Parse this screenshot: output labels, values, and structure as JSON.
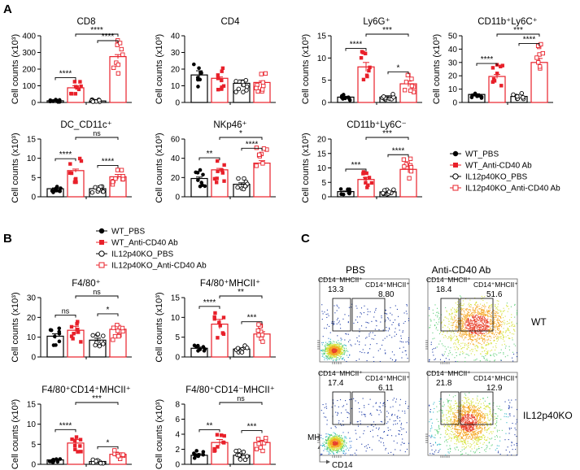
{
  "colors": {
    "wt": "#000000",
    "anti": "#e8202a",
    "ko_pbs": "#000000",
    "ko_anti": "#e8202a",
    "sig": "#000000"
  },
  "panels": [
    {
      "label": "A"
    },
    {
      "label": "B"
    },
    {
      "label": "C"
    }
  ],
  "legend_a": {
    "items": [
      "WT_PBS",
      "WT_Anti-CD40 Ab",
      "IL12p40KO_PBS",
      "IL12p40KO_Anti-CD40 Ab"
    ]
  },
  "legend_b": {
    "items": [
      "WT_PBS",
      "WT_Anti-CD40 Ab",
      "IL12p40KO_PBS",
      "IL12p40KO_Anti-CD40 Ab"
    ]
  },
  "chart_data": [
    {
      "id": "cd8",
      "type": "bar",
      "title": "CD8",
      "ylabel": "Cell counts (x10³)",
      "yticks": [
        "0",
        "100",
        "200",
        "300",
        "400"
      ],
      "ylim": [
        0,
        400
      ],
      "categories": [
        "WT_PBS",
        "WT_Anti-CD40 Ab",
        "IL12p40KO_PBS",
        "IL12p40KO_Anti-CD40 Ab"
      ],
      "values": [
        10,
        88,
        9,
        275
      ],
      "errors": [
        2,
        12,
        2,
        12
      ],
      "sig": [
        {
          "a": 0,
          "b": 1,
          "label": "****"
        },
        {
          "a": 2,
          "b": 3,
          "label": "****"
        },
        {
          "a": 1,
          "b": 3,
          "label": "****"
        }
      ]
    },
    {
      "id": "cd4",
      "type": "bar",
      "title": "CD4",
      "ylabel": "Cell counts (x10³)",
      "yticks": [
        "0",
        "10",
        "20",
        "30",
        "40"
      ],
      "ylim": [
        0,
        40
      ],
      "categories": [
        "WT_PBS",
        "WT_Anti-CD40 Ab",
        "IL12p40KO_PBS",
        "IL12p40KO_Anti-CD40 Ab"
      ],
      "values": [
        16.5,
        14.5,
        11.5,
        12
      ],
      "errors": [
        2.5,
        0.8,
        2,
        0.8
      ],
      "sig": []
    },
    {
      "id": "ly6g",
      "type": "bar",
      "title": "Ly6G⁺",
      "ylabel": "Cell counts (x10³)",
      "yticks": [
        "0",
        "5",
        "10",
        "15"
      ],
      "ylim": [
        0,
        15
      ],
      "categories": [
        "WT_PBS",
        "WT_Anti-CD40 Ab",
        "IL12p40KO_PBS",
        "IL12p40KO_Anti-CD40 Ab"
      ],
      "values": [
        1.2,
        8,
        1.2,
        4.2
      ],
      "errors": [
        0.2,
        1,
        0.3,
        0.6
      ],
      "sig": [
        {
          "a": 0,
          "b": 1,
          "label": "****"
        },
        {
          "a": 2,
          "b": 3,
          "label": "*"
        },
        {
          "a": 1,
          "b": 3,
          "label": "***"
        }
      ]
    },
    {
      "id": "cd11bly6chi",
      "type": "bar",
      "title": "CD11b⁺Ly6C⁺",
      "ylabel": "Cell counts (x10³)",
      "yticks": [
        "0",
        "10",
        "20",
        "30",
        "40",
        "50"
      ],
      "ylim": [
        0,
        50
      ],
      "categories": [
        "WT_PBS",
        "WT_Anti-CD40 Ab",
        "IL12p40KO_PBS",
        "IL12p40KO_Anti-CD40 Ab"
      ],
      "values": [
        6,
        19.5,
        4.5,
        30
      ],
      "errors": [
        0.5,
        1.5,
        0.5,
        3
      ],
      "sig": [
        {
          "a": 0,
          "b": 1,
          "label": "****"
        },
        {
          "a": 2,
          "b": 3,
          "label": "****"
        },
        {
          "a": 1,
          "b": 3,
          "label": "***"
        }
      ]
    },
    {
      "id": "dc",
      "type": "bar",
      "title": "DC_CD11c⁺",
      "ylabel": "Cell counts (x10³)",
      "yticks": [
        "0",
        "5",
        "10",
        "15"
      ],
      "ylim": [
        0,
        15
      ],
      "categories": [
        "WT_PBS",
        "WT_Anti-CD40 Ab",
        "IL12p40KO_PBS",
        "IL12p40KO_Anti-CD40 Ab"
      ],
      "values": [
        2.1,
        6.8,
        2.1,
        5.2
      ],
      "errors": [
        0.2,
        0.4,
        0.2,
        0.6
      ],
      "sig": [
        {
          "a": 0,
          "b": 1,
          "label": "****"
        },
        {
          "a": 2,
          "b": 3,
          "label": "****"
        },
        {
          "a": 1,
          "b": 3,
          "label": "ns"
        }
      ]
    },
    {
      "id": "nkp46",
      "type": "bar",
      "title": "NKp46⁺",
      "ylabel": "Cell counts (x10³)",
      "yticks": [
        "0",
        "20",
        "40",
        "60"
      ],
      "ylim": [
        0,
        60
      ],
      "categories": [
        "WT_PBS",
        "WT_Anti-CD40 Ab",
        "IL12p40KO_PBS",
        "IL12p40KO_Anti-CD40 Ab"
      ],
      "values": [
        19,
        28,
        13,
        35
      ],
      "errors": [
        1.5,
        1.5,
        1.5,
        2.5
      ],
      "sig": [
        {
          "a": 0,
          "b": 1,
          "label": "**"
        },
        {
          "a": 2,
          "b": 3,
          "label": "****"
        },
        {
          "a": 1,
          "b": 3,
          "label": "*"
        }
      ]
    },
    {
      "id": "cd11bly6clo",
      "type": "bar",
      "title": "CD11b⁺Ly6C⁻",
      "ylabel": "Cell counts (x10³)",
      "yticks": [
        "0",
        "5",
        "10",
        "15",
        "20"
      ],
      "ylim": [
        0,
        20
      ],
      "categories": [
        "WT_PBS",
        "WT_Anti-CD40 Ab",
        "IL12p40KO_PBS",
        "IL12p40KO_Anti-CD40 Ab"
      ],
      "values": [
        1.8,
        6,
        1.7,
        9.5
      ],
      "errors": [
        0.2,
        0.7,
        0.2,
        1.2
      ],
      "sig": [
        {
          "a": 0,
          "b": 1,
          "label": "***"
        },
        {
          "a": 2,
          "b": 3,
          "label": "****"
        },
        {
          "a": 1,
          "b": 3,
          "label": "***"
        }
      ]
    },
    {
      "id": "f480",
      "type": "bar",
      "title": "F4/80⁺",
      "ylabel": "Cell counts (x10³)",
      "yticks": [
        "0",
        "10",
        "20",
        "30"
      ],
      "ylim": [
        0,
        30
      ],
      "categories": [
        "WT_PBS",
        "WT_Anti-CD40 Ab",
        "IL12p40KO_PBS",
        "IL12p40KO_Anti-CD40 Ab"
      ],
      "values": [
        10.5,
        13.5,
        8.5,
        14
      ],
      "errors": [
        1.2,
        2,
        1,
        2
      ],
      "sig": [
        {
          "a": 0,
          "b": 1,
          "label": "ns"
        },
        {
          "a": 2,
          "b": 3,
          "label": "*"
        },
        {
          "a": 1,
          "b": 3,
          "label": "ns"
        }
      ]
    },
    {
      "id": "f480mhcii",
      "type": "bar",
      "title": "F4/80⁺MHCII⁺",
      "ylabel": "Cell counts (x10³)",
      "yticks": [
        "0",
        "5",
        "10",
        "15"
      ],
      "ylim": [
        0,
        15
      ],
      "categories": [
        "WT_PBS",
        "WT_Anti-CD40 Ab",
        "IL12p40KO_PBS",
        "IL12p40KO_Anti-CD40 Ab"
      ],
      "values": [
        2.2,
        8.3,
        2,
        5.8
      ],
      "errors": [
        0.3,
        1.2,
        0.3,
        0.6
      ],
      "sig": [
        {
          "a": 0,
          "b": 1,
          "label": "****"
        },
        {
          "a": 2,
          "b": 3,
          "label": "***"
        },
        {
          "a": 1,
          "b": 3,
          "label": "**"
        }
      ]
    },
    {
      "id": "f480cd14hi",
      "type": "bar",
      "title": "F4/80⁺CD14⁺MHCII⁺",
      "ylabel": "Cell counts (x10³)",
      "yticks": [
        "0",
        "5",
        "10",
        "15"
      ],
      "ylim": [
        0,
        15
      ],
      "categories": [
        "WT_PBS",
        "WT_Anti-CD40 Ab",
        "IL12p40KO_PBS",
        "IL12p40KO_Anti-CD40 Ab"
      ],
      "values": [
        1.1,
        5.3,
        0.7,
        2.5
      ],
      "errors": [
        0.2,
        0.9,
        0.1,
        0.3
      ],
      "sig": [
        {
          "a": 0,
          "b": 1,
          "label": "****"
        },
        {
          "a": 2,
          "b": 3,
          "label": "*"
        },
        {
          "a": 1,
          "b": 3,
          "label": "***"
        }
      ]
    },
    {
      "id": "f480cd14lo",
      "type": "bar",
      "title": "F4/80⁺CD14⁻MHCII⁺",
      "ylabel": "Cell counts (x10³)",
      "yticks": [
        "0",
        "2",
        "4",
        "6",
        "8"
      ],
      "ylim": [
        0,
        8
      ],
      "categories": [
        "WT_PBS",
        "WT_Anti-CD40 Ab",
        "IL12p40KO_PBS",
        "IL12p40KO_Anti-CD40 Ab"
      ],
      "values": [
        1.2,
        2.9,
        1.2,
        2.9
      ],
      "errors": [
        0.2,
        0.4,
        0.2,
        0.3
      ],
      "sig": [
        {
          "a": 0,
          "b": 1,
          "label": "**"
        },
        {
          "a": 2,
          "b": 3,
          "label": "***"
        },
        {
          "a": 1,
          "b": 3,
          "label": "ns"
        }
      ]
    }
  ],
  "flow": {
    "columns": [
      "PBS",
      "Anti-CD40 Ab"
    ],
    "rows": [
      "WT",
      "IL12p40KO"
    ],
    "x_axis_label": "CD14",
    "y_axis_label": "MHCII",
    "gate_left_label": "CD14⁻MHCII⁺",
    "gate_right_label": "CD14⁺MHCII⁺",
    "plots": [
      {
        "left_value": "13.3",
        "right_value": "8.80"
      },
      {
        "left_value": "18.4",
        "right_value": "51.6"
      },
      {
        "left_value": "17.4",
        "right_value": "6.11"
      },
      {
        "left_value": "21.8",
        "right_value": "12.9"
      }
    ]
  }
}
